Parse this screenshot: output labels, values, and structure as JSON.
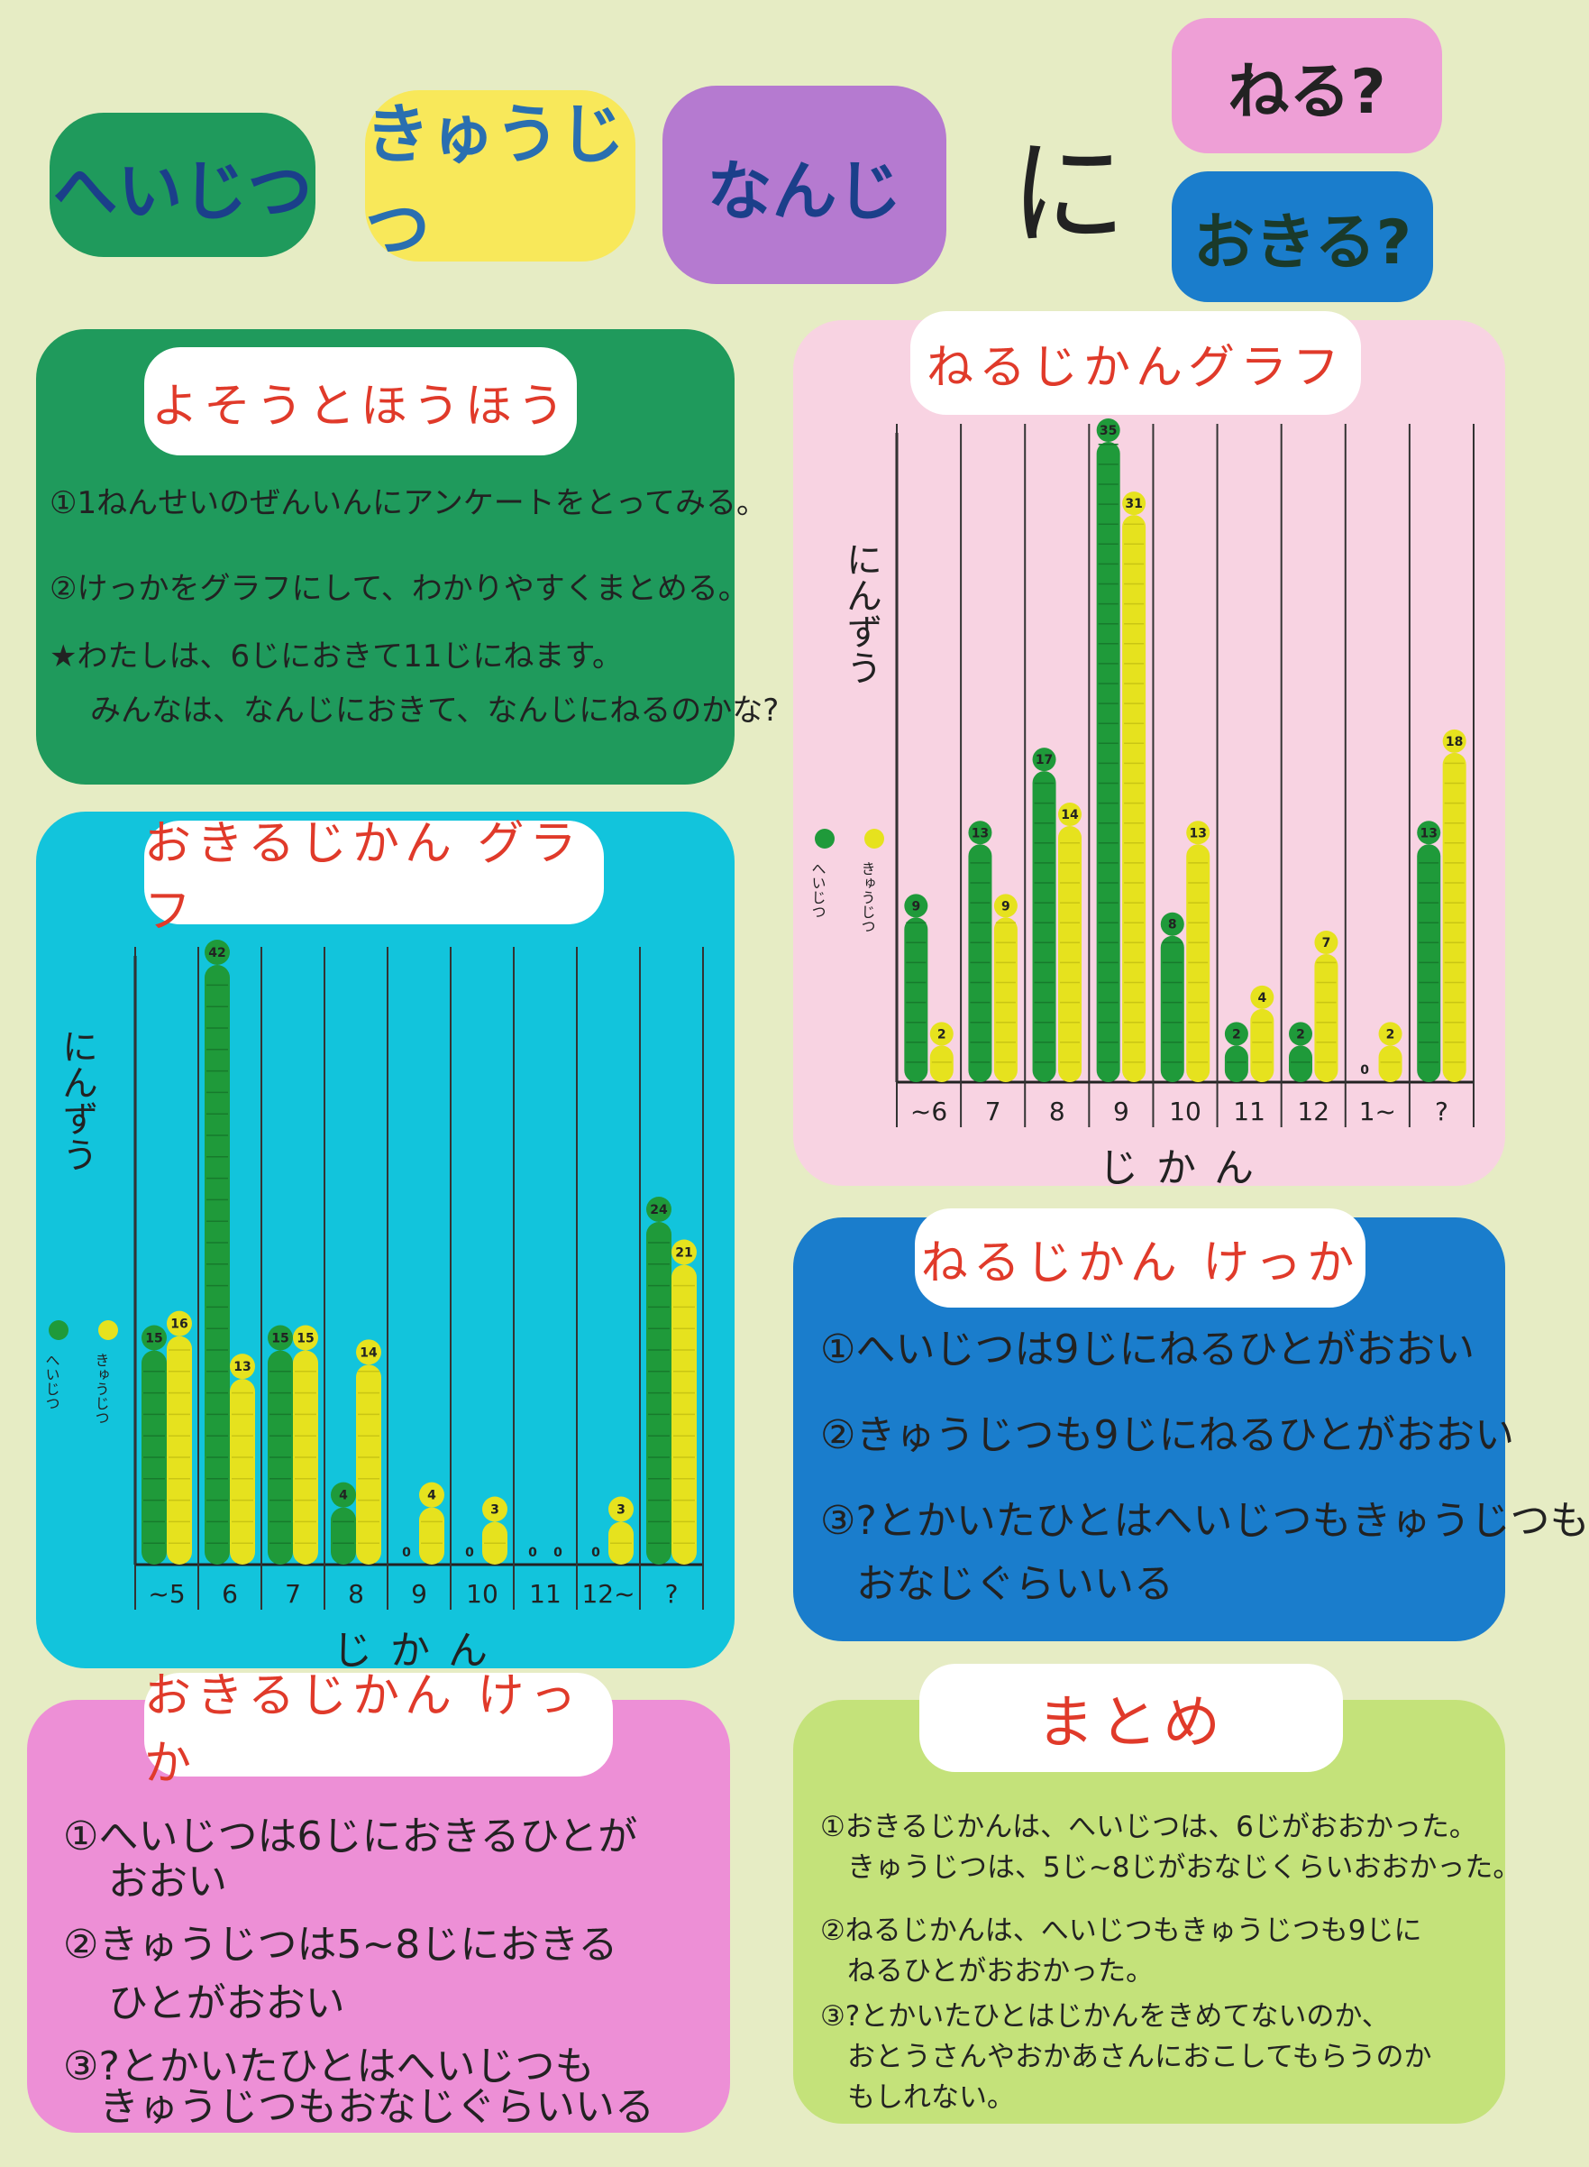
{
  "header": {
    "tag_heijitsu": "へいじつ",
    "tag_kyujitsu": "きゅうじつ",
    "tag_nanji": "なんじ",
    "ni": "に",
    "tag_neru": "ねる?",
    "tag_okiru": "おきる?"
  },
  "colors": {
    "heijitsu": "#1f9a3a",
    "kyujitsu": "#e6e21e",
    "accent": "#e03a2a"
  },
  "yosou": {
    "title": "よそうとほうほう",
    "lines": [
      "①1ねんせいのぜんいんにアンケートをとってみる。",
      "②けっかをグラフにして、わかりやすくまとめる。",
      "★わたしは、6じにおきて11じにねます。",
      "みんなは、なんじにおきて、なんじにねるのかな?"
    ]
  },
  "okiru_chart_title": "おきるじかん グラフ",
  "neru_chart_title": "ねるじかんグラフ",
  "chart_data": [
    {
      "type": "bar",
      "title": "おきるじかん グラフ",
      "ylabel": "にんずう",
      "xlabel": "じかん",
      "categories": [
        "~5",
        "6",
        "7",
        "8",
        "9",
        "10",
        "11",
        "12~",
        "?"
      ],
      "series": [
        {
          "name": "へいじつ",
          "values": [
            15,
            42,
            15,
            4,
            0,
            0,
            0,
            0,
            24
          ]
        },
        {
          "name": "きゅうじつ",
          "values": [
            16,
            13,
            15,
            14,
            4,
            3,
            0,
            3,
            21
          ]
        }
      ],
      "legend": "left"
    },
    {
      "type": "bar",
      "title": "ねるじかんグラフ",
      "ylabel": "にんずう",
      "xlabel": "じかん",
      "categories": [
        "~6",
        "7",
        "8",
        "9",
        "10",
        "11",
        "12",
        "1~",
        "?"
      ],
      "series": [
        {
          "name": "へいじつ",
          "values": [
            9,
            13,
            17,
            35,
            8,
            2,
            2,
            0,
            13
          ]
        },
        {
          "name": "きゅうじつ",
          "values": [
            2,
            9,
            14,
            31,
            13,
            4,
            7,
            2,
            18
          ]
        }
      ],
      "legend": "left"
    }
  ],
  "neru_kekka": {
    "title": "ねるじかん けっか",
    "lines": [
      "①へいじつは9じにねるひとがおおい",
      "②きゅうじつも9じにねるひとがおおい",
      "③?とかいたひとはへいじつもきゅうじつも",
      "おなじぐらいいる"
    ]
  },
  "okiru_kekka": {
    "title": "おきるじかん けっか",
    "lines": [
      "①へいじつは6じにおきるひとが",
      "おおい",
      "②きゅうじつは5~8じにおきる",
      "ひとがおおい",
      "③?とかいたひとはへいじつも",
      "きゅうじつもおなじぐらいいる"
    ]
  },
  "matome": {
    "title": "まとめ",
    "lines": [
      "①おきるじかんは、へいじつは、6じがおおかった。",
      "きゅうじつは、5じ~8じがおなじくらいおおかった。",
      "②ねるじかんは、へいじつもきゅうじつも9じに",
      "ねるひとがおおかった。",
      "③?とかいたひとはじかんをきめてないのか、",
      "おとうさんやおかあさんにおこしてもらうのか",
      "もしれない。"
    ]
  }
}
